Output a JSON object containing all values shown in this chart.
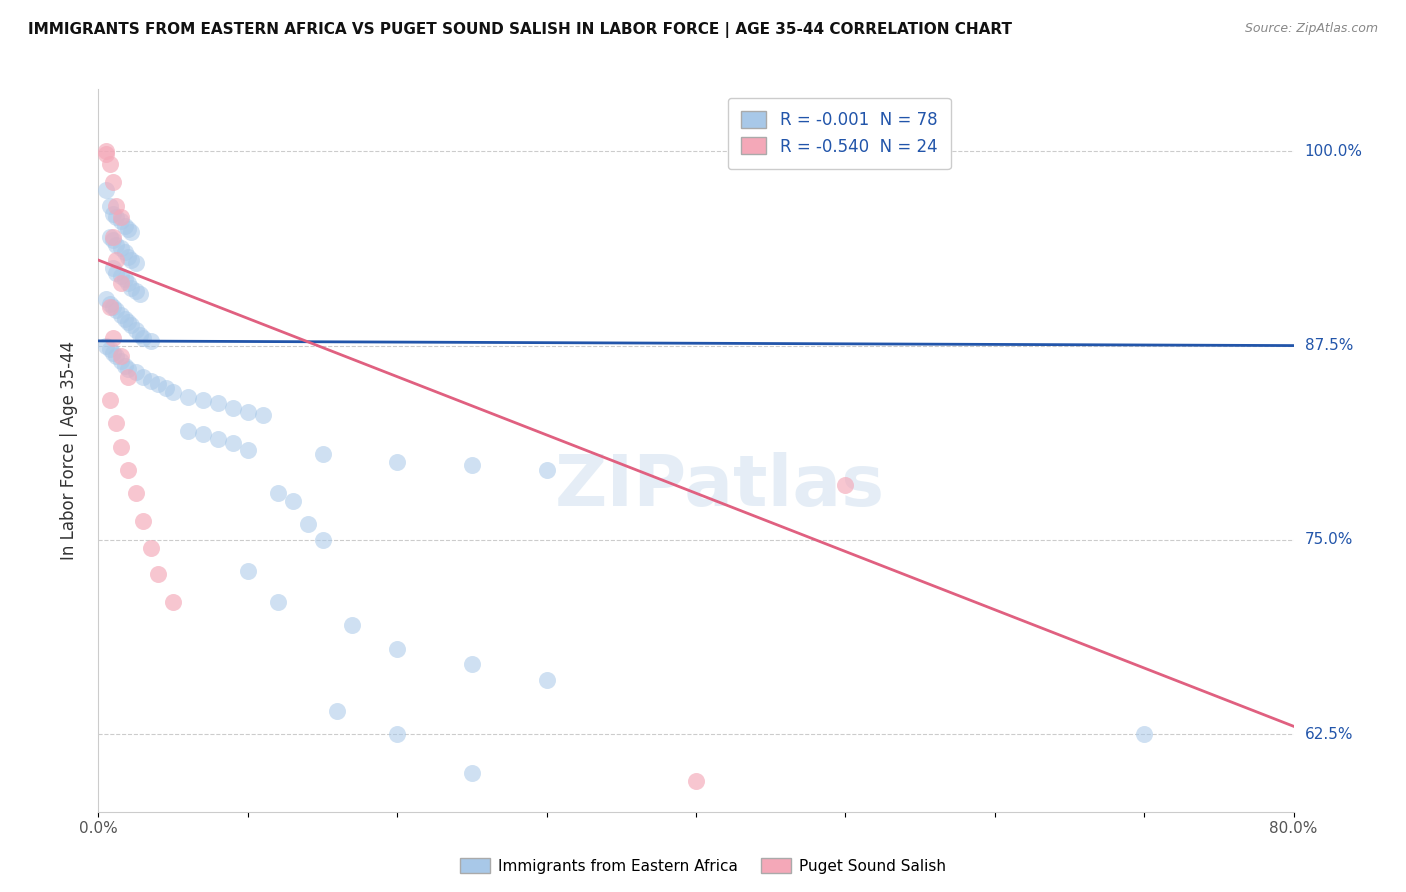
{
  "title": "IMMIGRANTS FROM EASTERN AFRICA VS PUGET SOUND SALISH IN LABOR FORCE | AGE 35-44 CORRELATION CHART",
  "source": "Source: ZipAtlas.com",
  "ylabel": "In Labor Force | Age 35-44",
  "xlim": [
    0.0,
    0.8
  ],
  "ylim": [
    0.575,
    1.04
  ],
  "ytick_positions": [
    0.625,
    0.75,
    0.875,
    1.0
  ],
  "ytick_labels": [
    "62.5%",
    "75.0%",
    "87.5%",
    "100.0%"
  ],
  "legend_r_blue": "-0.001",
  "legend_n_blue": "78",
  "legend_r_pink": "-0.540",
  "legend_n_pink": "24",
  "blue_color": "#A8C8E8",
  "pink_color": "#F4A8B8",
  "line_blue_color": "#2255AA",
  "line_pink_color": "#E06080",
  "watermark": "ZIPatlas",
  "blue_scatter": [
    [
      0.005,
      0.975
    ],
    [
      0.008,
      0.965
    ],
    [
      0.01,
      0.96
    ],
    [
      0.012,
      0.958
    ],
    [
      0.015,
      0.955
    ],
    [
      0.018,
      0.952
    ],
    [
      0.02,
      0.95
    ],
    [
      0.022,
      0.948
    ],
    [
      0.008,
      0.945
    ],
    [
      0.01,
      0.943
    ],
    [
      0.012,
      0.94
    ],
    [
      0.015,
      0.938
    ],
    [
      0.018,
      0.935
    ],
    [
      0.02,
      0.932
    ],
    [
      0.022,
      0.93
    ],
    [
      0.025,
      0.928
    ],
    [
      0.01,
      0.925
    ],
    [
      0.012,
      0.922
    ],
    [
      0.015,
      0.92
    ],
    [
      0.018,
      0.918
    ],
    [
      0.02,
      0.915
    ],
    [
      0.022,
      0.912
    ],
    [
      0.025,
      0.91
    ],
    [
      0.028,
      0.908
    ],
    [
      0.005,
      0.905
    ],
    [
      0.008,
      0.902
    ],
    [
      0.01,
      0.9
    ],
    [
      0.012,
      0.898
    ],
    [
      0.015,
      0.895
    ],
    [
      0.018,
      0.892
    ],
    [
      0.02,
      0.89
    ],
    [
      0.022,
      0.888
    ],
    [
      0.025,
      0.885
    ],
    [
      0.028,
      0.882
    ],
    [
      0.03,
      0.88
    ],
    [
      0.035,
      0.878
    ],
    [
      0.005,
      0.875
    ],
    [
      0.008,
      0.873
    ],
    [
      0.01,
      0.87
    ],
    [
      0.012,
      0.868
    ],
    [
      0.015,
      0.865
    ],
    [
      0.018,
      0.862
    ],
    [
      0.02,
      0.86
    ],
    [
      0.025,
      0.858
    ],
    [
      0.03,
      0.855
    ],
    [
      0.035,
      0.852
    ],
    [
      0.04,
      0.85
    ],
    [
      0.045,
      0.848
    ],
    [
      0.05,
      0.845
    ],
    [
      0.06,
      0.842
    ],
    [
      0.07,
      0.84
    ],
    [
      0.08,
      0.838
    ],
    [
      0.09,
      0.835
    ],
    [
      0.1,
      0.832
    ],
    [
      0.11,
      0.83
    ],
    [
      0.06,
      0.82
    ],
    [
      0.07,
      0.818
    ],
    [
      0.08,
      0.815
    ],
    [
      0.09,
      0.812
    ],
    [
      0.1,
      0.808
    ],
    [
      0.15,
      0.805
    ],
    [
      0.2,
      0.8
    ],
    [
      0.25,
      0.798
    ],
    [
      0.3,
      0.795
    ],
    [
      0.12,
      0.78
    ],
    [
      0.13,
      0.775
    ],
    [
      0.14,
      0.76
    ],
    [
      0.15,
      0.75
    ],
    [
      0.1,
      0.73
    ],
    [
      0.12,
      0.71
    ],
    [
      0.17,
      0.695
    ],
    [
      0.2,
      0.68
    ],
    [
      0.25,
      0.67
    ],
    [
      0.3,
      0.66
    ],
    [
      0.16,
      0.64
    ],
    [
      0.2,
      0.625
    ],
    [
      0.7,
      0.625
    ],
    [
      0.25,
      0.6
    ]
  ],
  "pink_scatter": [
    [
      0.005,
      0.998
    ],
    [
      0.008,
      0.992
    ],
    [
      0.01,
      0.98
    ],
    [
      0.012,
      0.965
    ],
    [
      0.015,
      0.958
    ],
    [
      0.01,
      0.945
    ],
    [
      0.012,
      0.93
    ],
    [
      0.015,
      0.915
    ],
    [
      0.008,
      0.9
    ],
    [
      0.01,
      0.88
    ],
    [
      0.015,
      0.868
    ],
    [
      0.02,
      0.855
    ],
    [
      0.008,
      0.84
    ],
    [
      0.012,
      0.825
    ],
    [
      0.015,
      0.81
    ],
    [
      0.02,
      0.795
    ],
    [
      0.025,
      0.78
    ],
    [
      0.03,
      0.762
    ],
    [
      0.035,
      0.745
    ],
    [
      0.04,
      0.728
    ],
    [
      0.05,
      0.71
    ],
    [
      0.5,
      0.785
    ],
    [
      0.4,
      0.595
    ],
    [
      0.005,
      1.0
    ]
  ],
  "blue_line_x": [
    0.0,
    0.8
  ],
  "blue_line_y": [
    0.878,
    0.875
  ],
  "pink_line_x": [
    0.0,
    0.8
  ],
  "pink_line_y": [
    0.93,
    0.63
  ]
}
